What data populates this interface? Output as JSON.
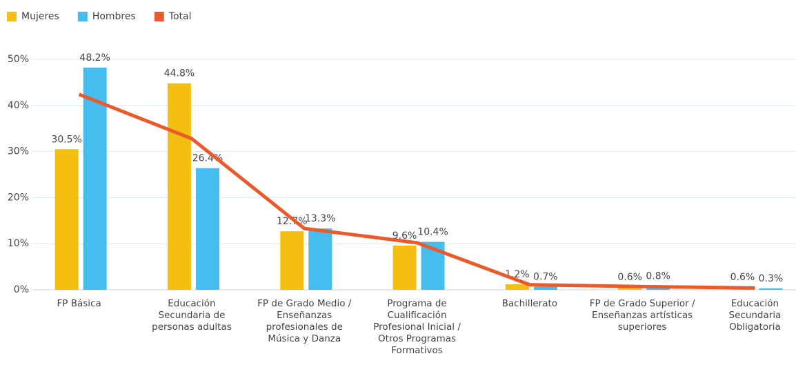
{
  "chart_data": {
    "type": "bar",
    "categories": [
      "FP Básica",
      "Educación Secundaria de personas adultas",
      "FP de Grado Medio / Enseñanzas profesionales de Música y Danza",
      "Programa de Cualificación Profesional Inicial / Otros Programas Formativos",
      "Bachillerato",
      "FP de Grado Superior / Enseñanzas artísticas superiores",
      "Educación Secundaria Obligatoria"
    ],
    "series": [
      {
        "name": "Mujeres",
        "type": "bar",
        "color": "#f5bf12",
        "values": [
          30.5,
          44.8,
          12.7,
          9.6,
          1.2,
          0.6,
          0.6
        ],
        "value_labels": [
          "30.5%",
          "44.8%",
          "12.7%",
          "9.6%",
          "1.2%",
          "0.6%",
          "0.6%"
        ]
      },
      {
        "name": "Hombres",
        "type": "bar",
        "color": "#45bdef",
        "values": [
          48.2,
          26.4,
          13.3,
          10.4,
          0.7,
          0.8,
          0.3
        ],
        "value_labels": [
          "48.2%",
          "26.4%",
          "13.3%",
          "10.4%",
          "0.7%",
          "0.8%",
          "0.3%"
        ]
      },
      {
        "name": "Total",
        "type": "line",
        "color": "#e95b2b",
        "values": [
          42.4,
          32.8,
          13.3,
          10.2,
          1.1,
          0.7,
          0.4
        ]
      }
    ],
    "ylim": [
      0,
      50
    ],
    "yticks": [
      {
        "value": 0,
        "label": "0%"
      },
      {
        "value": 10,
        "label": "10%"
      },
      {
        "value": 20,
        "label": "20%"
      },
      {
        "value": 30,
        "label": "30%"
      },
      {
        "value": 40,
        "label": "40%"
      },
      {
        "value": 50,
        "label": "50%"
      }
    ],
    "grid": true,
    "legend": "top-left"
  }
}
